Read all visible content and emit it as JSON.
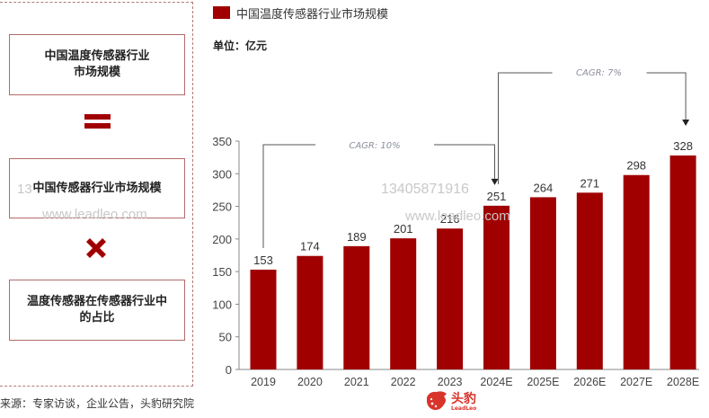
{
  "left_panel": {
    "box1": {
      "line1": "中国温度传感器行业",
      "line2": "市场规模"
    },
    "equals_icon": "equals-sign",
    "box2": {
      "label": "中国传感器行业市场规模"
    },
    "multiply_icon": "cross-mark",
    "box3": {
      "line1": "温度传感器在传感器行业中",
      "line2": "的占比"
    }
  },
  "source": "来源：专家访谈，企业公告，头豹研究院",
  "legend": {
    "label": "中国温度传感器行业市场规模",
    "color": "#a00000"
  },
  "unit": "单位：亿元",
  "annotations": {
    "cagr1": "CAGR: 10%",
    "cagr2": "CAGR: 7%"
  },
  "watermarks": {
    "phone": "13405871916",
    "site": "www.leadleo.com",
    "phone_partial": "13"
  },
  "logo": {
    "cn": "头豹",
    "en": "LeadLeo",
    "color": "#d9342b"
  },
  "chart_data": {
    "type": "bar",
    "title": "中国温度传感器行业市场规模",
    "ylabel": "单位：亿元",
    "xlabel": "",
    "categories": [
      "2019",
      "2020",
      "2021",
      "2022",
      "2023",
      "2024E",
      "2025E",
      "2026E",
      "2027E",
      "2028E"
    ],
    "values": [
      153,
      174,
      189,
      201,
      216,
      251,
      264,
      271,
      298,
      328
    ],
    "ylim": [
      0,
      350
    ],
    "yticks": [
      0,
      50,
      100,
      150,
      200,
      250,
      300,
      350
    ],
    "grid": false,
    "legend_position": "top-left",
    "bar_color": "#a00000",
    "annotations": [
      {
        "text": "CAGR: 10%",
        "from": "2019",
        "to": "2024E"
      },
      {
        "text": "CAGR: 7%",
        "from": "2024E",
        "to": "2028E"
      }
    ]
  }
}
